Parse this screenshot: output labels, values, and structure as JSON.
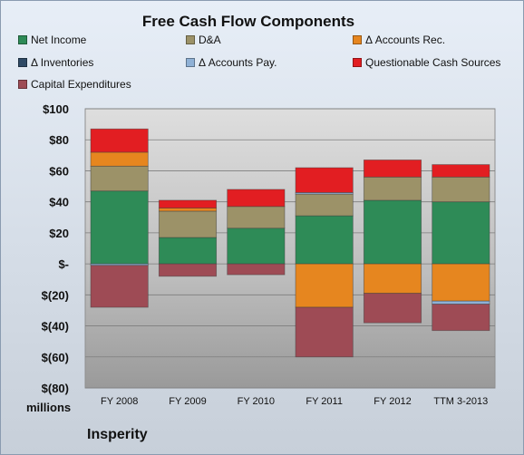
{
  "chart_data": {
    "type": "bar",
    "stacked": true,
    "title": "Free Cash Flow Components",
    "units_label": "millions",
    "company": "Insperity",
    "categories": [
      "FY 2008",
      "FY 2009",
      "FY 2010",
      "FY 2011",
      "FY 2012",
      "TTM 3-2013"
    ],
    "series": [
      {
        "name": "Net Income",
        "color": "#2e8b57",
        "values": [
          47,
          17,
          23,
          31,
          41,
          40
        ]
      },
      {
        "name": "D&A",
        "color": "#9c9268",
        "values": [
          16,
          17,
          14,
          14,
          15,
          16
        ]
      },
      {
        "name": "Δ Accounts Rec.",
        "color": "#e6861f",
        "values": [
          9,
          2,
          0,
          -28,
          -19,
          -24
        ]
      },
      {
        "name": "Δ Inventories",
        "color": "#2f4a66",
        "values": [
          0,
          0,
          0,
          0,
          0,
          0
        ]
      },
      {
        "name": "Δ Accounts Pay.",
        "color": "#8fb1d6",
        "values": [
          -1,
          0,
          0,
          1,
          0,
          -2
        ]
      },
      {
        "name": "Questionable Cash Sources",
        "color": "#e21e22",
        "values": [
          15,
          5,
          11,
          16,
          11,
          8
        ]
      },
      {
        "name": "Capital Expenditures",
        "color": "#9e4b55",
        "values": [
          -27,
          -8,
          -7,
          -32,
          -19,
          -17
        ]
      }
    ],
    "ylim": [
      -80,
      100
    ],
    "ytick_values": [
      100,
      80,
      60,
      40,
      20,
      0,
      -20,
      -40,
      -60,
      -80
    ],
    "ytick_labels": [
      "$100",
      "$80",
      "$60",
      "$40",
      "$20",
      "$-",
      "$(20)",
      "$(40)",
      "$(60)",
      "$(80)"
    ],
    "grid": true,
    "legend_position": "top"
  }
}
